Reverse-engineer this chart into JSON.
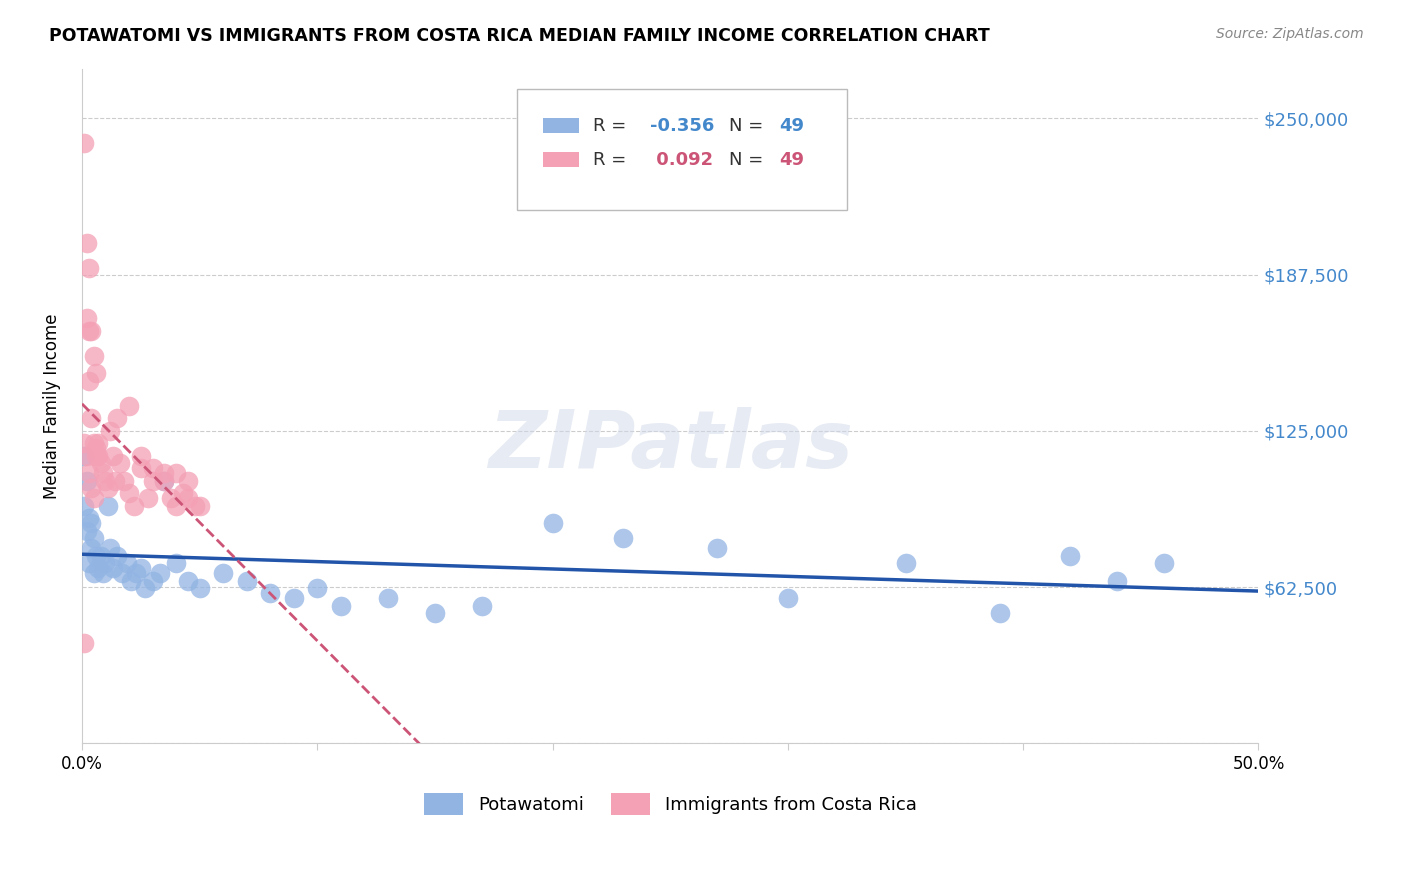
{
  "title": "POTAWATOMI VS IMMIGRANTS FROM COSTA RICA MEDIAN FAMILY INCOME CORRELATION CHART",
  "source": "Source: ZipAtlas.com",
  "ylabel": "Median Family Income",
  "yticks": [
    0,
    62500,
    125000,
    187500,
    250000
  ],
  "ytick_labels": [
    "",
    "$62,500",
    "$125,000",
    "$187,500",
    "$250,000"
  ],
  "xlim": [
    0.0,
    0.5
  ],
  "ylim": [
    0,
    270000
  ],
  "blue_R": "-0.356",
  "pink_R": "0.092",
  "N": "49",
  "legend_label_blue": "Potawatomi",
  "legend_label_pink": "Immigrants from Costa Rica",
  "blue_color": "#92b4e3",
  "pink_color": "#f4a0b5",
  "blue_line_color": "#2255aa",
  "pink_line_color": "#cc5577",
  "blue_scatter_x": [
    0.001,
    0.001,
    0.002,
    0.002,
    0.003,
    0.003,
    0.004,
    0.004,
    0.005,
    0.005,
    0.006,
    0.007,
    0.008,
    0.009,
    0.01,
    0.011,
    0.012,
    0.013,
    0.015,
    0.017,
    0.019,
    0.021,
    0.023,
    0.025,
    0.027,
    0.03,
    0.033,
    0.035,
    0.04,
    0.045,
    0.05,
    0.06,
    0.07,
    0.08,
    0.09,
    0.1,
    0.11,
    0.13,
    0.15,
    0.17,
    0.2,
    0.23,
    0.27,
    0.3,
    0.35,
    0.39,
    0.42,
    0.44,
    0.46
  ],
  "blue_scatter_y": [
    115000,
    95000,
    105000,
    85000,
    90000,
    72000,
    88000,
    78000,
    82000,
    68000,
    75000,
    70000,
    75000,
    68000,
    72000,
    95000,
    78000,
    70000,
    75000,
    68000,
    72000,
    65000,
    68000,
    70000,
    62000,
    65000,
    68000,
    105000,
    72000,
    65000,
    62000,
    68000,
    65000,
    60000,
    58000,
    62000,
    55000,
    58000,
    52000,
    55000,
    88000,
    82000,
    78000,
    58000,
    72000,
    52000,
    75000,
    65000,
    72000
  ],
  "pink_scatter_x": [
    0.001,
    0.001,
    0.002,
    0.002,
    0.003,
    0.003,
    0.004,
    0.004,
    0.005,
    0.005,
    0.006,
    0.006,
    0.007,
    0.008,
    0.009,
    0.01,
    0.011,
    0.012,
    0.013,
    0.014,
    0.015,
    0.016,
    0.018,
    0.02,
    0.022,
    0.025,
    0.028,
    0.03,
    0.035,
    0.038,
    0.04,
    0.043,
    0.045,
    0.048,
    0.003,
    0.004,
    0.005,
    0.006,
    0.007,
    0.02,
    0.025,
    0.03,
    0.035,
    0.04,
    0.045,
    0.05,
    0.002,
    0.003,
    0.001
  ],
  "pink_scatter_y": [
    240000,
    120000,
    200000,
    115000,
    190000,
    108000,
    165000,
    102000,
    155000,
    98000,
    148000,
    115000,
    120000,
    112000,
    108000,
    105000,
    102000,
    125000,
    115000,
    105000,
    130000,
    112000,
    105000,
    100000,
    95000,
    110000,
    98000,
    105000,
    108000,
    98000,
    95000,
    100000,
    105000,
    95000,
    145000,
    130000,
    120000,
    118000,
    115000,
    135000,
    115000,
    110000,
    105000,
    108000,
    98000,
    95000,
    170000,
    165000,
    40000
  ]
}
